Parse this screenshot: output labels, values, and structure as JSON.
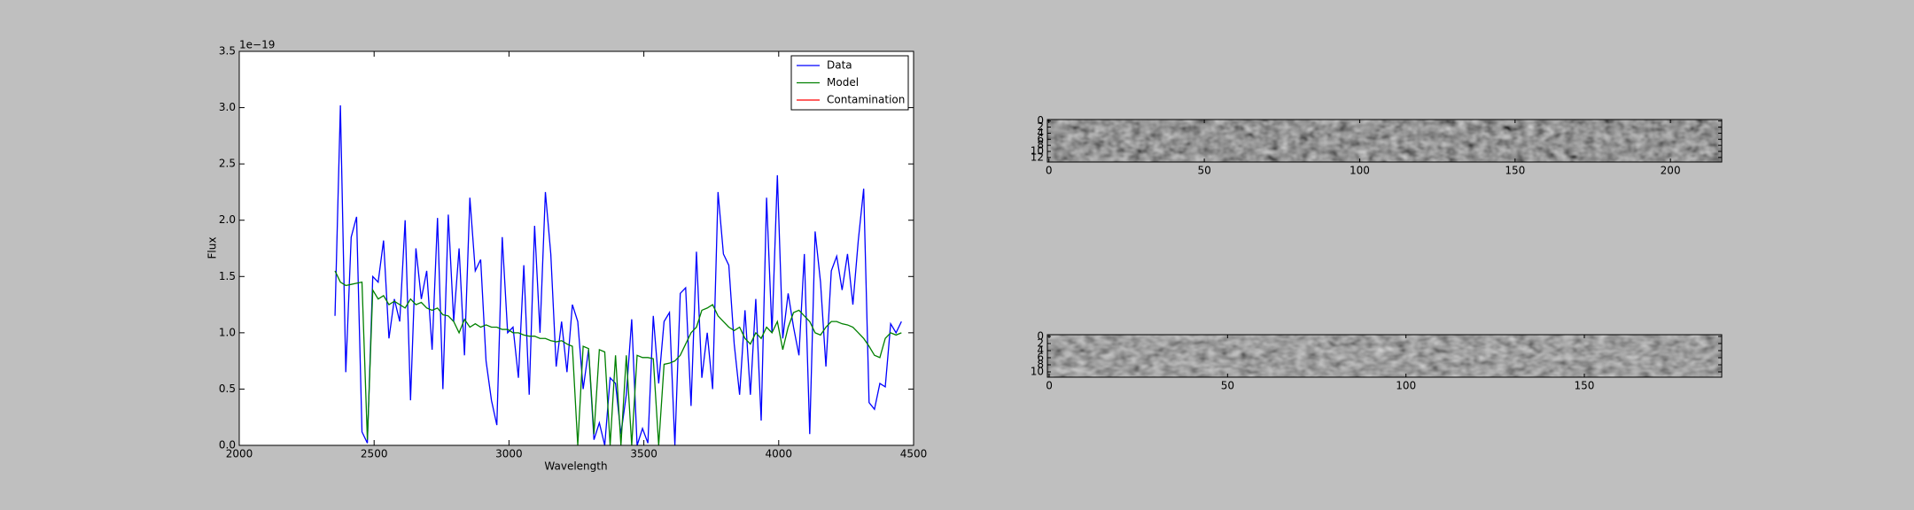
{
  "chart_data": [
    {
      "type": "line",
      "xlabel": "Wavelength",
      "ylabel": "Flux",
      "offset_label": "1e−19",
      "x": [
        2355,
        2375,
        2395,
        2415,
        2435,
        2455,
        2475,
        2495,
        2515,
        2535,
        2555,
        2575,
        2595,
        2615,
        2635,
        2655,
        2675,
        2695,
        2715,
        2735,
        2755,
        2775,
        2795,
        2815,
        2835,
        2855,
        2875,
        2895,
        2915,
        2935,
        2955,
        2975,
        2995,
        3015,
        3035,
        3055,
        3075,
        3095,
        3115,
        3135,
        3155,
        3175,
        3195,
        3215,
        3235,
        3255,
        3275,
        3295,
        3315,
        3335,
        3355,
        3375,
        3395,
        3415,
        3435,
        3455,
        3475,
        3495,
        3515,
        3535,
        3555,
        3575,
        3595,
        3615,
        3635,
        3655,
        3675,
        3695,
        3715,
        3735,
        3755,
        3775,
        3795,
        3815,
        3835,
        3855,
        3875,
        3895,
        3915,
        3935,
        3955,
        3975,
        3995,
        4015,
        4035,
        4055,
        4075,
        4095,
        4115,
        4135,
        4155,
        4175,
        4195,
        4215,
        4235,
        4255,
        4275,
        4295,
        4315,
        4335,
        4355,
        4375,
        4395,
        4415,
        4435,
        4455
      ],
      "series": [
        {
          "name": "Data",
          "color": "#0000ff",
          "values": [
            1.15,
            3.02,
            0.65,
            1.85,
            2.03,
            0.12,
            0.02,
            1.5,
            1.45,
            1.82,
            0.95,
            1.3,
            1.1,
            2.0,
            0.4,
            1.75,
            1.3,
            1.55,
            0.85,
            2.02,
            0.5,
            2.05,
            1.1,
            1.75,
            0.8,
            2.2,
            1.55,
            1.65,
            0.75,
            0.4,
            0.18,
            1.85,
            1.0,
            1.05,
            0.6,
            1.6,
            0.45,
            1.95,
            1.0,
            2.25,
            1.7,
            0.7,
            1.1,
            0.65,
            1.25,
            1.1,
            0.5,
            0.85,
            0.05,
            0.2,
            0.0,
            0.6,
            0.55,
            0.1,
            0.45,
            1.12,
            0.0,
            0.15,
            0.02,
            1.15,
            0.55,
            1.1,
            1.18,
            0.0,
            1.35,
            1.4,
            0.35,
            1.72,
            0.6,
            1.0,
            0.5,
            2.25,
            1.7,
            1.6,
            0.9,
            0.45,
            1.2,
            0.45,
            1.3,
            0.22,
            2.2,
            1.0,
            2.4,
            0.95,
            1.35,
            1.05,
            0.8,
            1.7,
            0.1,
            1.9,
            1.45,
            0.7,
            1.55,
            1.68,
            1.38,
            1.7,
            1.25,
            1.82,
            2.28,
            0.38,
            0.32,
            0.55,
            0.52,
            1.08,
            1.0,
            1.1
          ]
        },
        {
          "name": "Model",
          "color": "#008000",
          "values": [
            1.55,
            1.45,
            1.42,
            1.43,
            1.44,
            1.45,
            0.05,
            1.38,
            1.3,
            1.33,
            1.25,
            1.28,
            1.25,
            1.22,
            1.3,
            1.25,
            1.27,
            1.22,
            1.2,
            1.22,
            1.16,
            1.15,
            1.1,
            1.0,
            1.12,
            1.05,
            1.08,
            1.05,
            1.07,
            1.05,
            1.05,
            1.03,
            1.03,
            1.0,
            1.0,
            0.98,
            0.97,
            0.97,
            0.95,
            0.95,
            0.93,
            0.92,
            0.93,
            0.9,
            0.88,
            0.0,
            0.88,
            0.86,
            0.1,
            0.85,
            0.83,
            0.0,
            0.8,
            0.0,
            0.8,
            0.0,
            0.8,
            0.78,
            0.78,
            0.77,
            0.0,
            0.72,
            0.73,
            0.75,
            0.8,
            0.9,
            1.0,
            1.05,
            1.2,
            1.22,
            1.25,
            1.15,
            1.1,
            1.05,
            1.02,
            1.05,
            0.95,
            0.9,
            1.0,
            0.95,
            1.05,
            1.0,
            1.1,
            0.85,
            1.05,
            1.18,
            1.2,
            1.15,
            1.1,
            1.0,
            0.98,
            1.05,
            1.1,
            1.1,
            1.08,
            1.07,
            1.05,
            1.0,
            0.95,
            0.88,
            0.8,
            0.78,
            0.95,
            1.0,
            0.98,
            1.0
          ]
        },
        {
          "name": "Contamination",
          "color": "#ff0000"
        }
      ],
      "xlim": [
        2000,
        4500
      ],
      "xticks": [
        2000,
        2500,
        3000,
        3500,
        4000,
        4500
      ],
      "ylim": [
        0,
        3.5
      ],
      "yticks": [
        {
          "value": 0,
          "label": "0.0"
        },
        0.5,
        {
          "value": 1,
          "label": "1.0"
        },
        1.5,
        {
          "value": 2,
          "label": "2.0"
        },
        2.5,
        {
          "value": 3,
          "label": "3.0"
        },
        3.5
      ],
      "legend": "upper right"
    },
    {
      "type": "image",
      "xlim": [
        -0.5,
        216.5
      ],
      "xticks": [
        0,
        50,
        100,
        150,
        200
      ],
      "ylim": [
        13.5,
        -0.5
      ],
      "yticks": [
        0,
        2,
        4,
        6,
        8,
        10,
        12
      ]
    },
    {
      "type": "image",
      "xlim": [
        -0.5,
        188.5
      ],
      "xticks": [
        0,
        50,
        100,
        150
      ],
      "ylim": [
        11.5,
        -0.5
      ],
      "yticks": [
        0,
        2,
        4,
        6,
        8,
        10
      ]
    }
  ]
}
